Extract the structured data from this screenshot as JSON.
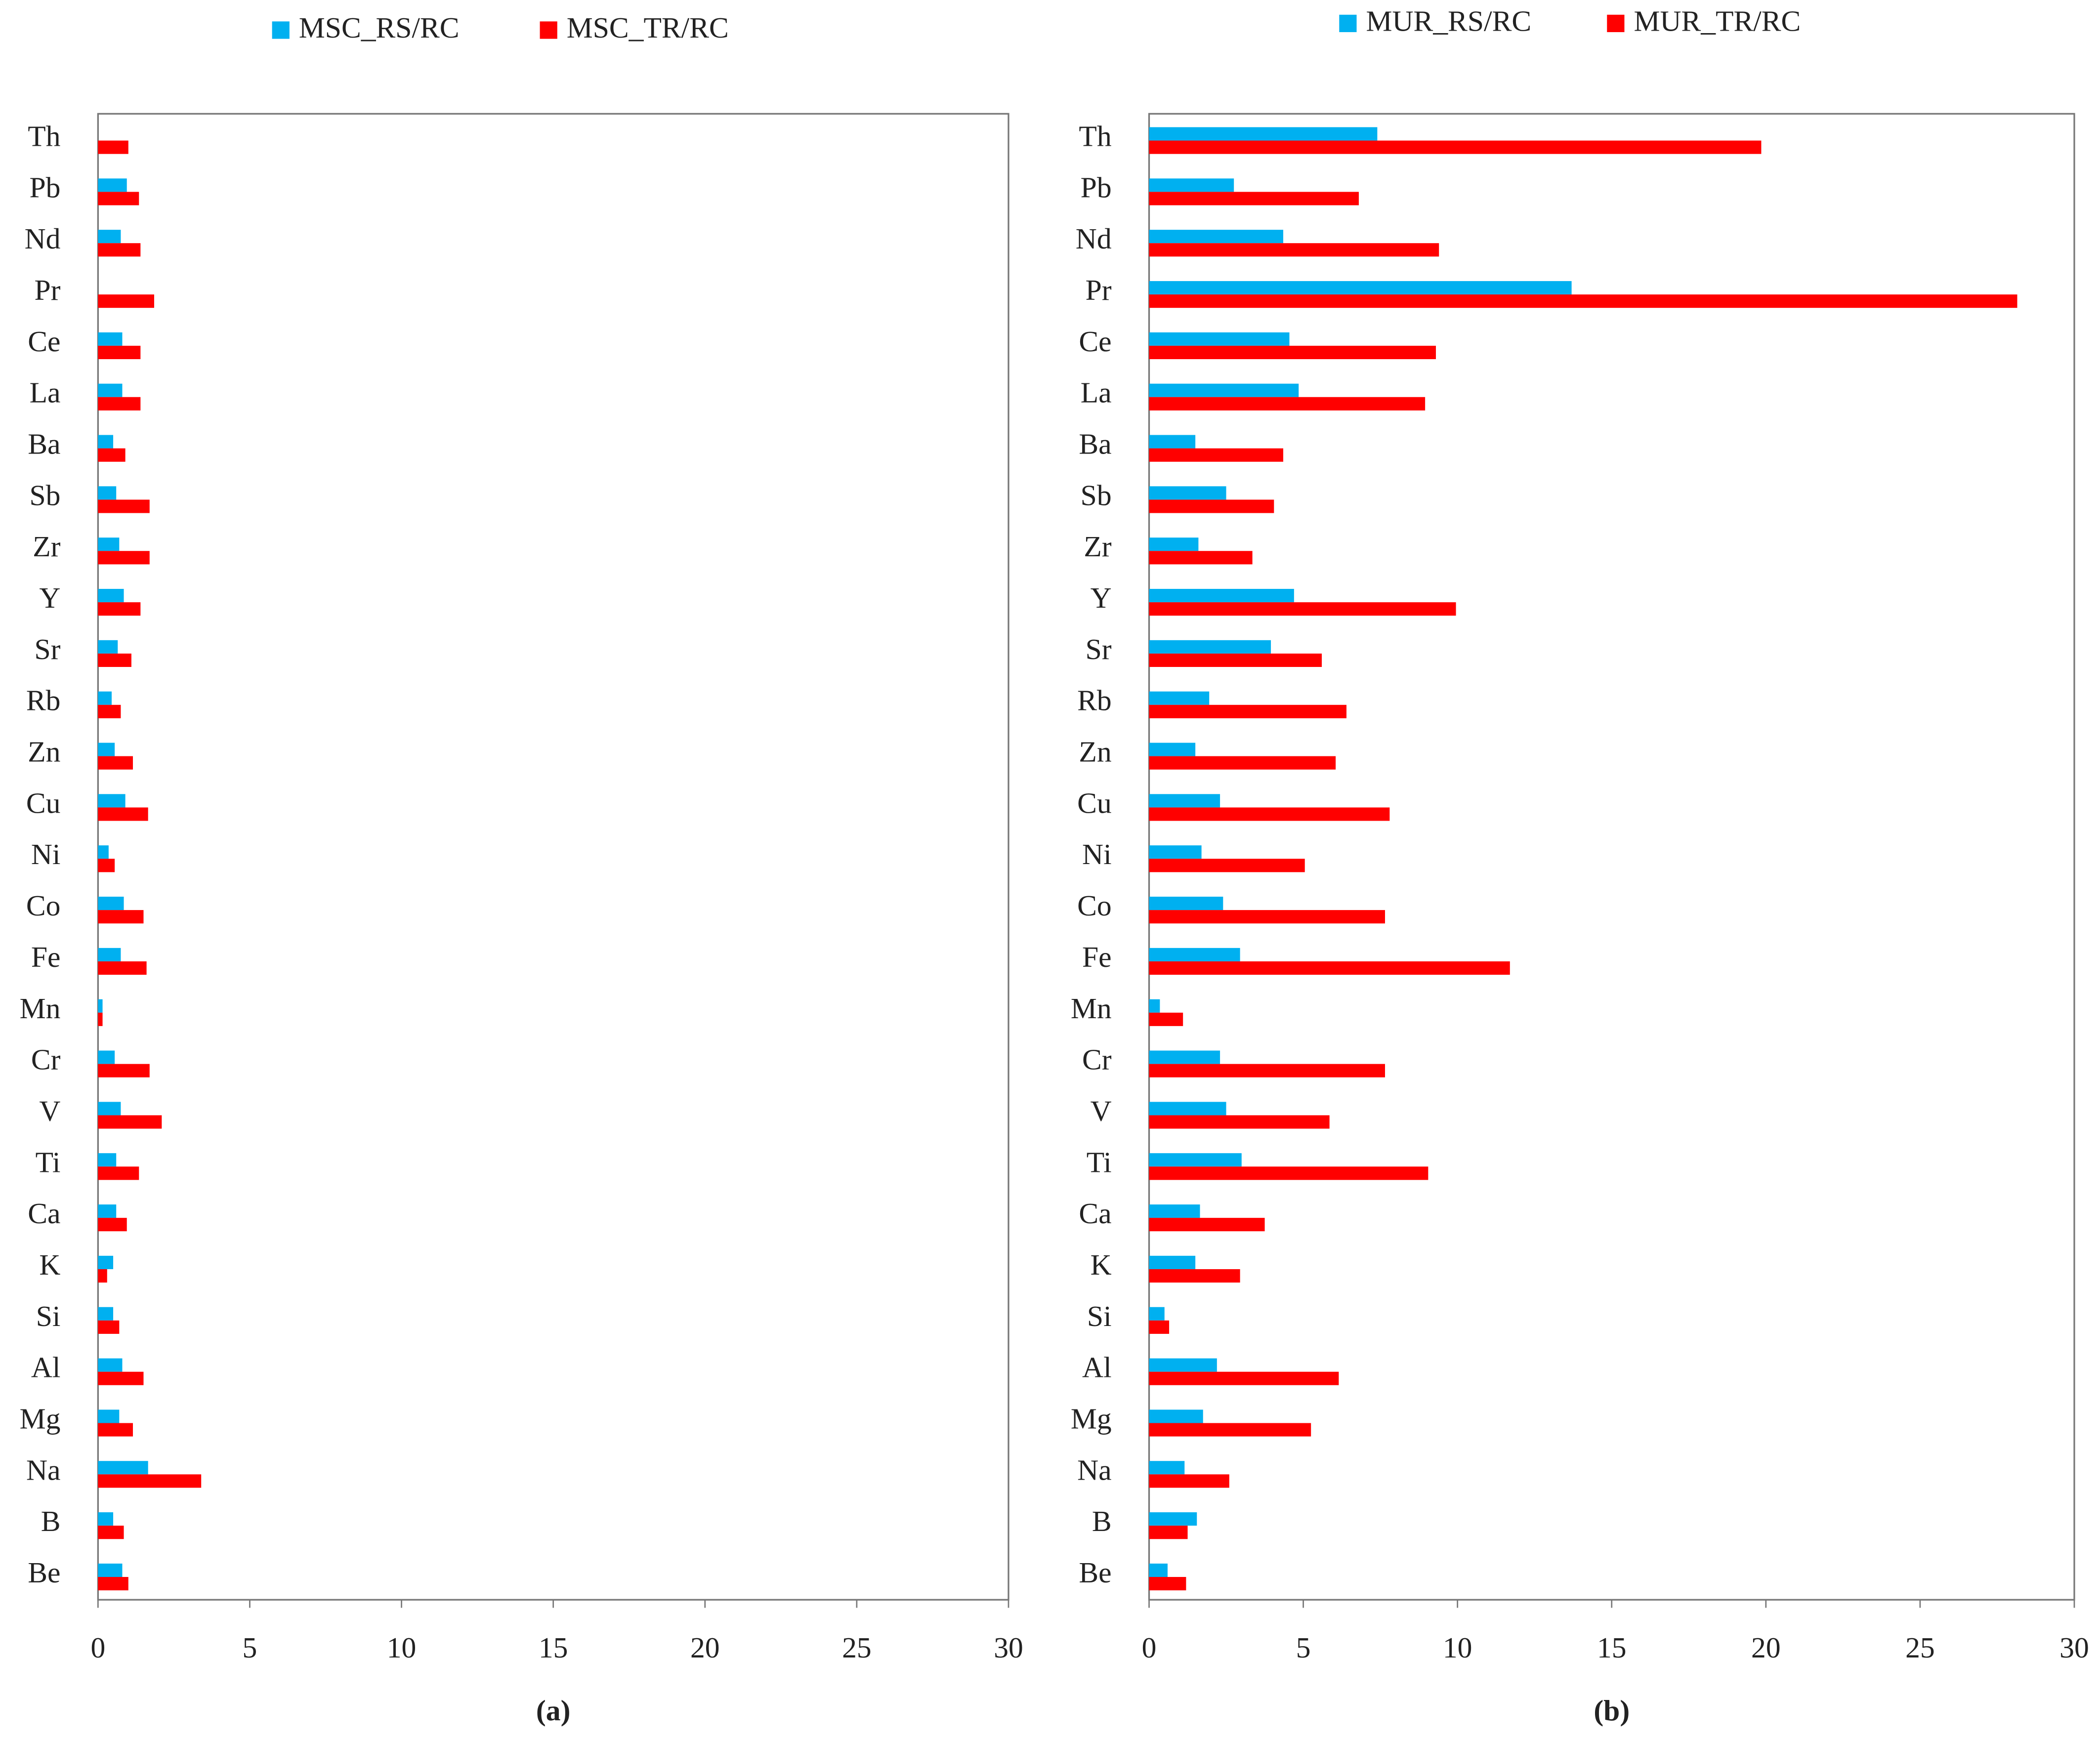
{
  "chart_data": [
    {
      "type": "bar",
      "orientation": "horizontal",
      "caption": "(a)",
      "legend": "top",
      "categories": [
        "Th",
        "Pb",
        "Nd",
        "Pr",
        "Ce",
        "La",
        "Ba",
        "Sb",
        "Zr",
        "Y",
        "Sr",
        "Rb",
        "Zn",
        "Cu",
        "Ni",
        "Co",
        "Fe",
        "Mn",
        "Cr",
        "V",
        "Ti",
        "Ca",
        "K",
        "Si",
        "Al",
        "Mg",
        "Na",
        "B",
        "Be"
      ],
      "series": [
        {
          "name": "MSC_RS/RC",
          "color": "#00b0f0",
          "values": [
            0,
            0.95,
            0.75,
            0,
            0.8,
            0.8,
            0.5,
            0.6,
            0.7,
            0.85,
            0.65,
            0.45,
            0.55,
            0.9,
            0.35,
            0.85,
            0.75,
            0.15,
            0.55,
            0.75,
            0.6,
            0.6,
            0.5,
            0.5,
            0.8,
            0.7,
            1.65,
            0.5,
            0.8
          ]
        },
        {
          "name": "MSC_TR/RC",
          "color": "#ff0000",
          "values": [
            1.0,
            1.35,
            1.4,
            1.85,
            1.4,
            1.4,
            0.9,
            1.7,
            1.7,
            1.4,
            1.1,
            0.75,
            1.15,
            1.65,
            0.55,
            1.5,
            1.6,
            0.15,
            1.7,
            2.1,
            1.35,
            0.95,
            0.3,
            0.7,
            1.5,
            1.15,
            3.4,
            0.85,
            1.0
          ]
        }
      ],
      "xlim": [
        0,
        30
      ],
      "xticks": [
        0,
        5,
        10,
        15,
        20,
        25,
        30
      ]
    },
    {
      "type": "bar",
      "orientation": "horizontal",
      "caption": "(b)",
      "legend": "top",
      "categories": [
        "Th",
        "Pb",
        "Nd",
        "Pr",
        "Ce",
        "La",
        "Ba",
        "Sb",
        "Zr",
        "Y",
        "Sr",
        "Rb",
        "Zn",
        "Cu",
        "Ni",
        "Co",
        "Fe",
        "Mn",
        "Cr",
        "V",
        "Ti",
        "Ca",
        "K",
        "Si",
        "Al",
        "Mg",
        "Na",
        "B",
        "Be"
      ],
      "series": [
        {
          "name": "MUR_RS/RC",
          "color": "#00b0f0",
          "values": [
            7.4,
            2.75,
            4.35,
            13.7,
            4.55,
            4.85,
            1.5,
            2.5,
            1.6,
            4.7,
            3.95,
            1.95,
            1.5,
            2.3,
            1.7,
            2.4,
            2.95,
            0.35,
            2.3,
            2.5,
            3.0,
            1.65,
            1.5,
            0.5,
            2.2,
            1.75,
            1.15,
            1.55,
            0.6
          ]
        },
        {
          "name": "MUR_TR/RC",
          "color": "#ff0000",
          "values": [
            19.85,
            6.8,
            9.4,
            28.15,
            9.3,
            8.95,
            4.35,
            4.05,
            3.35,
            9.95,
            5.6,
            6.4,
            6.05,
            7.8,
            5.05,
            7.65,
            11.7,
            1.1,
            7.65,
            5.85,
            9.05,
            3.75,
            2.95,
            0.65,
            6.15,
            5.25,
            2.6,
            1.25,
            1.2
          ]
        }
      ],
      "xlim": [
        0,
        30
      ],
      "xticks": [
        0,
        5,
        10,
        15,
        20,
        25,
        30
      ]
    }
  ]
}
